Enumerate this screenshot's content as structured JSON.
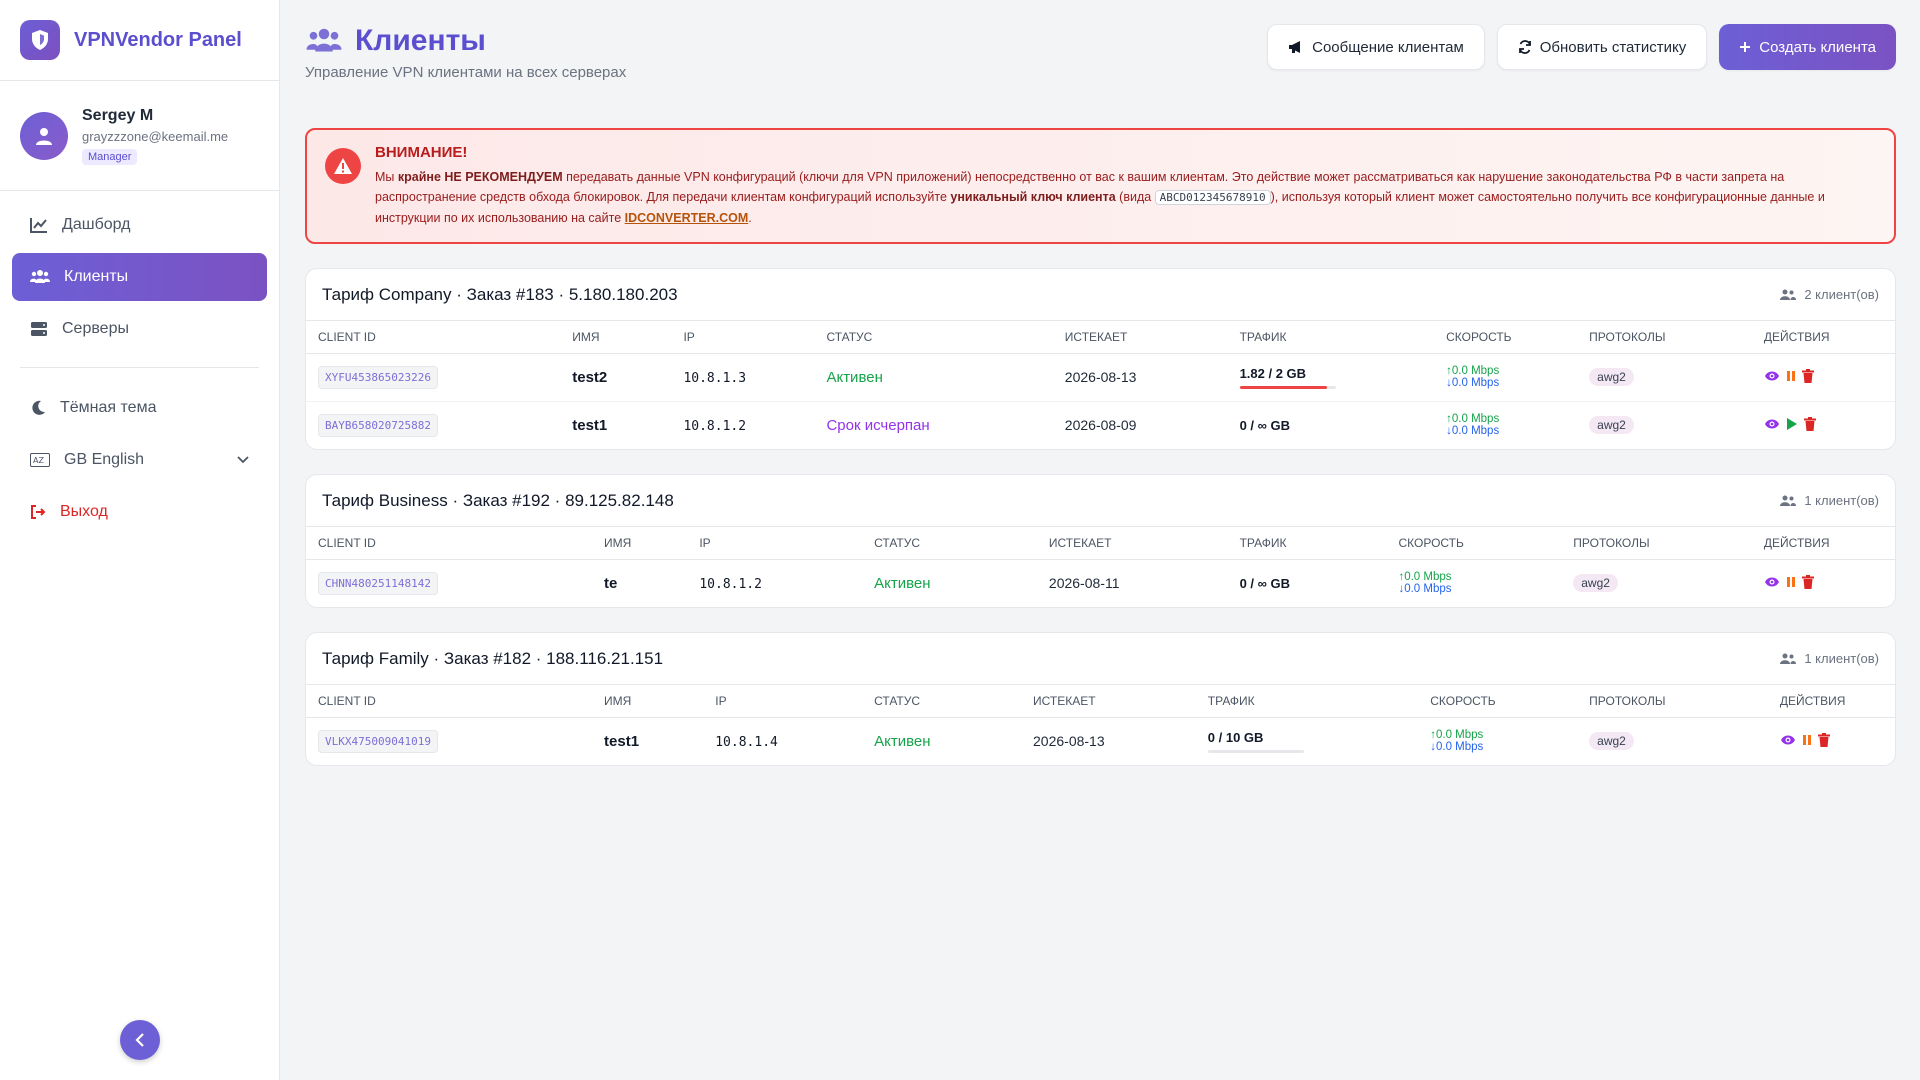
{
  "sidebar": {
    "brand": "VPNVendor Panel",
    "user": {
      "name": "Sergey M",
      "email": "grayzzzone@keemail.me",
      "role": "Manager"
    },
    "nav": [
      {
        "label": "Дашборд",
        "icon": "chart-line-icon"
      },
      {
        "label": "Клиенты",
        "icon": "users-icon",
        "active": true
      },
      {
        "label": "Серверы",
        "icon": "server-icon"
      }
    ],
    "theme_label": "Тёмная тема",
    "language_label": "GB English",
    "logout_label": "Выход"
  },
  "header": {
    "title": "Клиенты",
    "subtitle": "Управление VPN клиентами на всех серверах",
    "buttons": {
      "message": "Сообщение клиентам",
      "refresh": "Обновить статистику",
      "create": "Создать клиента"
    }
  },
  "alert": {
    "title": "ВНИМАНИЕ!",
    "p1": "Мы ",
    "p1_bold": "крайне НЕ РЕКОМЕНДУЕМ",
    "p2": " передавать данные VPN конфигураций (ключи для VPN приложений) непосредственно от вас к вашим клиентам. Это действие может рассматриваться как нарушение законодательства РФ в части запрета на распространение средств обхода блокировок. Для передачи клиентам конфигураций используйте ",
    "p2_bold": "уникальный ключ клиента",
    "p3": " (вида ",
    "code": "ABCD012345678910",
    "p4": "), используя который клиент может самостоятельно получить все конфигурационные данные и инструкции по их использованию на сайте ",
    "link": "IDCONVERTER.COM",
    "p5": "."
  },
  "columns": [
    "CLIENT ID",
    "ИМЯ",
    "IP",
    "СТАТУС",
    "ИСТЕКАЕТ",
    "ТРАФИК",
    "СКОРОСТЬ",
    "ПРОТОКОЛЫ",
    "ДЕЙСТВИЯ"
  ],
  "groups": [
    {
      "title": "Тариф Company · Заказ #183 · 5.180.180.203",
      "count": "2 клиент(ов)",
      "rows": [
        {
          "id": "XYFU453865023226",
          "name": "test2",
          "ip": "10.8.1.3",
          "status": "Активен",
          "status_type": "active",
          "expires": "2026-08-13",
          "traffic": "1.82 / 2 GB",
          "traffic_frac": 0.91,
          "up": "↑0.0 Mbps",
          "down": "↓0.0 Mbps",
          "proto": "awg2",
          "state": "running"
        },
        {
          "id": "BAYB658020725882",
          "name": "test1",
          "ip": "10.8.1.2",
          "status": "Срок исчерпан",
          "status_type": "expired",
          "expires": "2026-08-09",
          "traffic": "0 / ∞ GB",
          "traffic_frac": null,
          "up": "↑0.0 Mbps",
          "down": "↓0.0 Mbps",
          "proto": "awg2",
          "state": "paused"
        }
      ]
    },
    {
      "title": "Тариф Business · Заказ #192 · 89.125.82.148",
      "count": "1 клиент(ов)",
      "rows": [
        {
          "id": "CHNN480251148142",
          "name": "te",
          "ip": "10.8.1.2",
          "status": "Активен",
          "status_type": "active",
          "expires": "2026-08-11",
          "traffic": "0 / ∞ GB",
          "traffic_frac": null,
          "up": "↑0.0 Mbps",
          "down": "↓0.0 Mbps",
          "proto": "awg2",
          "state": "running"
        }
      ]
    },
    {
      "title": "Тариф Family · Заказ #182 · 188.116.21.151",
      "count": "1 клиент(ов)",
      "rows": [
        {
          "id": "VLKX475009041019",
          "name": "test1",
          "ip": "10.8.1.4",
          "status": "Активен",
          "status_type": "active",
          "expires": "2026-08-13",
          "traffic": "0 / 10 GB",
          "traffic_frac": 0,
          "up": "↑0.0 Mbps",
          "down": "↓0.0 Mbps",
          "proto": "awg2",
          "state": "running"
        }
      ]
    }
  ],
  "colors": {
    "accent": "#6d5fd6",
    "danger": "#ef4444",
    "success": "#16a34a",
    "pause": "#f97316"
  }
}
